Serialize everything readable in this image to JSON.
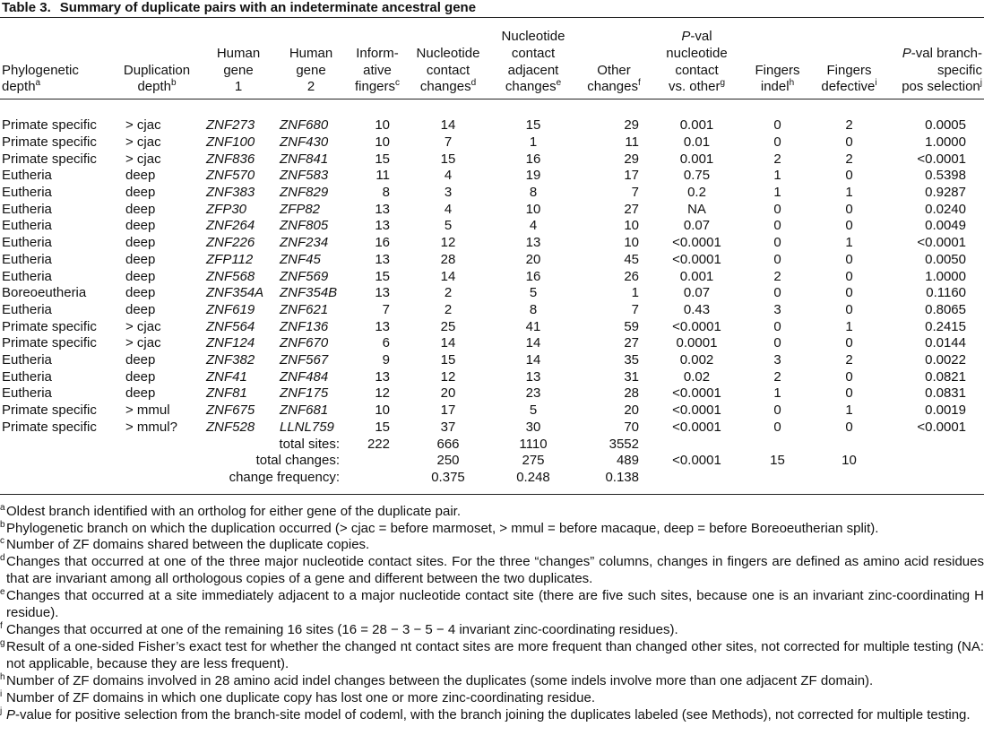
{
  "title": {
    "label": "Table 3.",
    "text": "Summary of duplicate pairs with an indeterminate ancestral gene"
  },
  "columns": [
    {
      "lines": [
        "Phylogenetic",
        "depth"
      ],
      "sup": "a"
    },
    {
      "lines": [
        "Duplication",
        "depth"
      ],
      "sup": "b"
    },
    {
      "lines": [
        "Human",
        "gene",
        "1"
      ]
    },
    {
      "lines": [
        "Human",
        "gene",
        "2"
      ]
    },
    {
      "lines": [
        "Inform-",
        "ative",
        "fingers"
      ],
      "sup": "c"
    },
    {
      "lines": [
        "Nucleotide",
        "contact",
        "changes"
      ],
      "sup": "d"
    },
    {
      "lines": [
        "Nucleotide",
        "contact",
        "adjacent",
        "changes"
      ],
      "sup": "e"
    },
    {
      "lines": [
        "Other",
        "changes"
      ],
      "sup": "f"
    },
    {
      "lines": [
        "P-val",
        "nucleotide",
        "contact",
        "vs. other"
      ],
      "sup": "g"
    },
    {
      "lines": [
        "Fingers",
        "indel"
      ],
      "sup": "h"
    },
    {
      "lines": [
        "Fingers",
        "defective"
      ],
      "sup": "i"
    },
    {
      "lines": [
        "P-val branch-",
        "specific",
        "pos selection"
      ],
      "sup": "j"
    }
  ],
  "rows": [
    [
      "Primate specific",
      "> cjac",
      "ZNF273",
      "ZNF680",
      "10",
      "14",
      "15",
      "29",
      "0.001",
      "0",
      "2",
      "0.0005"
    ],
    [
      "Primate specific",
      "> cjac",
      "ZNF100",
      "ZNF430",
      "10",
      "7",
      "1",
      "11",
      "0.01",
      "0",
      "0",
      "1.0000"
    ],
    [
      "Primate specific",
      "> cjac",
      "ZNF836",
      "ZNF841",
      "15",
      "15",
      "16",
      "29",
      "0.001",
      "2",
      "2",
      "<0.0001"
    ],
    [
      "Eutheria",
      "deep",
      "ZNF570",
      "ZNF583",
      "11",
      "4",
      "19",
      "17",
      "0.75",
      "1",
      "0",
      "0.5398"
    ],
    [
      "Eutheria",
      "deep",
      "ZNF383",
      "ZNF829",
      "8",
      "3",
      "8",
      "7",
      "0.2",
      "1",
      "1",
      "0.9287"
    ],
    [
      "Eutheria",
      "deep",
      "ZFP30",
      "ZFP82",
      "13",
      "4",
      "10",
      "27",
      "NA",
      "0",
      "0",
      "0.0240"
    ],
    [
      "Eutheria",
      "deep",
      "ZNF264",
      "ZNF805",
      "13",
      "5",
      "4",
      "10",
      "0.07",
      "0",
      "0",
      "0.0049"
    ],
    [
      "Eutheria",
      "deep",
      "ZNF226",
      "ZNF234",
      "16",
      "12",
      "13",
      "10",
      "<0.0001",
      "0",
      "1",
      "<0.0001"
    ],
    [
      "Eutheria",
      "deep",
      "ZFP112",
      "ZNF45",
      "13",
      "28",
      "20",
      "45",
      "<0.0001",
      "0",
      "0",
      "0.0050"
    ],
    [
      "Eutheria",
      "deep",
      "ZNF568",
      "ZNF569",
      "15",
      "14",
      "16",
      "26",
      "0.001",
      "2",
      "0",
      "1.0000"
    ],
    [
      "Boreoeutheria",
      "deep",
      "ZNF354A",
      "ZNF354B",
      "13",
      "2",
      "5",
      "1",
      "0.07",
      "0",
      "0",
      "0.1160"
    ],
    [
      "Eutheria",
      "deep",
      "ZNF619",
      "ZNF621",
      "7",
      "2",
      "8",
      "7",
      "0.43",
      "3",
      "0",
      "0.8065"
    ],
    [
      "Primate specific",
      "> cjac",
      "ZNF564",
      "ZNF136",
      "13",
      "25",
      "41",
      "59",
      "<0.0001",
      "0",
      "1",
      "0.2415"
    ],
    [
      "Primate specific",
      "> cjac",
      "ZNF124",
      "ZNF670",
      "6",
      "14",
      "14",
      "27",
      "0.0001",
      "0",
      "0",
      "0.0144"
    ],
    [
      "Eutheria",
      "deep",
      "ZNF382",
      "ZNF567",
      "9",
      "15",
      "14",
      "35",
      "0.002",
      "3",
      "2",
      "0.0022"
    ],
    [
      "Eutheria",
      "deep",
      "ZNF41",
      "ZNF484",
      "13",
      "12",
      "13",
      "31",
      "0.02",
      "2",
      "0",
      "0.0821"
    ],
    [
      "Eutheria",
      "deep",
      "ZNF81",
      "ZNF175",
      "12",
      "20",
      "23",
      "28",
      "<0.0001",
      "1",
      "0",
      "0.0831"
    ],
    [
      "Primate specific",
      "> mmul",
      "ZNF675",
      "ZNF681",
      "10",
      "17",
      "5",
      "20",
      "<0.0001",
      "0",
      "1",
      "0.0019"
    ],
    [
      "Primate specific",
      "> mmul?",
      "ZNF528",
      "LLNL759",
      "15",
      "37",
      "30",
      "70",
      "<0.0001",
      "0",
      "0",
      "<0.0001"
    ]
  ],
  "summary": [
    [
      "total sites:",
      "222",
      "666",
      "1110",
      "3552",
      null,
      null,
      null,
      null
    ],
    [
      "total changes:",
      null,
      "250",
      "275",
      "489",
      "<0.0001",
      "15",
      "10",
      null
    ],
    [
      "change frequency:",
      null,
      "0.375",
      "0.248",
      "0.138",
      null,
      null,
      null,
      null
    ]
  ],
  "footnotes": [
    {
      "mark": "a",
      "text": "Oldest branch identified with an ortholog for either gene of the duplicate pair."
    },
    {
      "mark": "b",
      "text": "Phylogenetic branch on which the duplication occurred (> cjac = before marmoset, > mmul = before macaque, deep = before Boreoeutherian split)."
    },
    {
      "mark": "c",
      "text": "Number of ZF domains shared between the duplicate copies."
    },
    {
      "mark": "d",
      "text": "Changes that occurred at one of the three major nucleotide contact sites. For the three “changes” columns, changes in fingers are defined as amino acid residues that are invariant among all orthologous copies of a gene and different between the two duplicates."
    },
    {
      "mark": "e",
      "text": "Changes that occurred at a site immediately adjacent to a major nucleotide contact site (there are five such sites, because one is an invariant zinc-coordinating H residue)."
    },
    {
      "mark": "f",
      "text": "Changes that occurred at one of the remaining 16 sites (16 = 28 − 3 − 5 − 4 invariant zinc-coordinating residues)."
    },
    {
      "mark": "g",
      "text": "Result of a one-sided Fisher’s exact test for whether the changed nt contact sites are more frequent than changed other sites, not corrected for multiple testing (NA: not applicable, because they are less frequent)."
    },
    {
      "mark": "h",
      "text": "Number of ZF domains involved in 28 amino acid indel changes between the duplicates (some indels involve more than one adjacent ZF domain)."
    },
    {
      "mark": "i",
      "text": "Number of ZF domains in which one duplicate copy has lost one or more zinc-coordinating residue."
    },
    {
      "mark": "j",
      "text": "P-value for positive selection from the branch-site model of codeml, with the branch joining the duplicates labeled (see Methods), not corrected for multiple testing."
    }
  ]
}
